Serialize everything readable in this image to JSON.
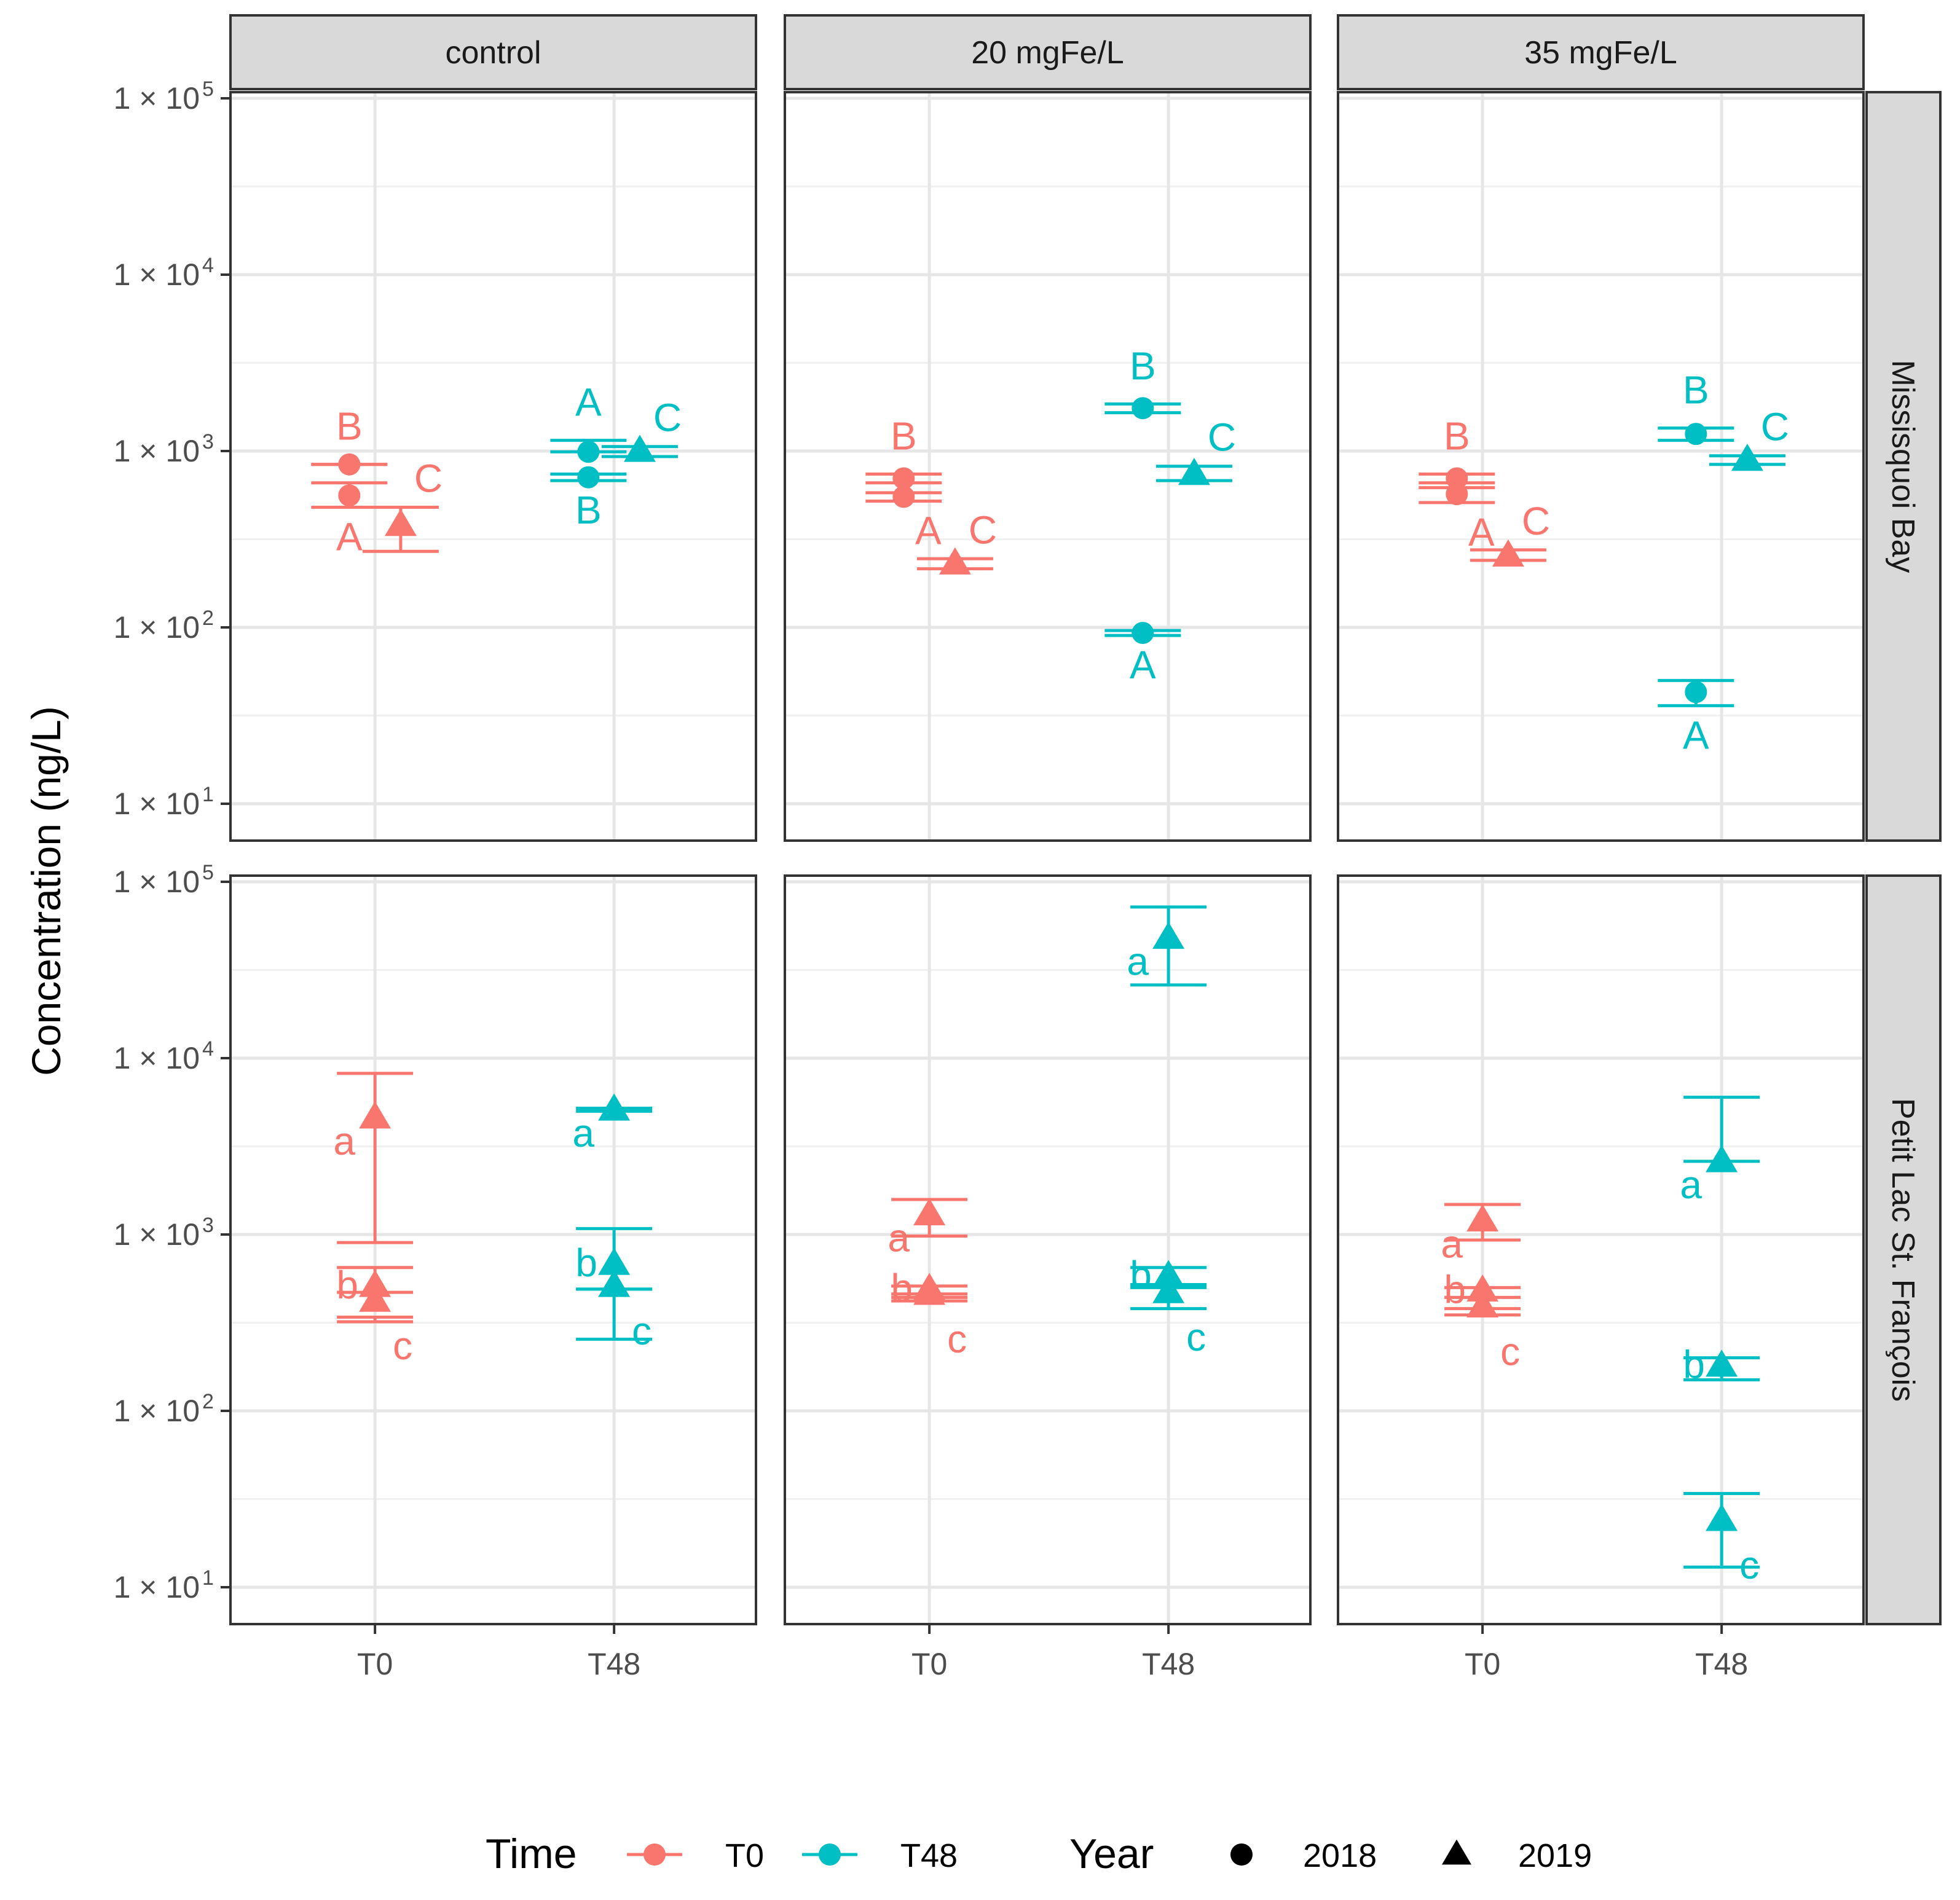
{
  "chart_data": {
    "type": "scatter",
    "title": "",
    "ylabel": "Concentration (ng/L)",
    "xlabel": "",
    "y_scale": "log10",
    "ylim": [
      10,
      100000
    ],
    "y_ticks": [
      {
        "value": 10,
        "label": "1 × 10",
        "exp": "1"
      },
      {
        "value": 100,
        "label": "1 × 10",
        "exp": "2"
      },
      {
        "value": 1000,
        "label": "1 × 10",
        "exp": "3"
      },
      {
        "value": 10000,
        "label": "1 × 10",
        "exp": "4"
      },
      {
        "value": 100000,
        "label": "1 × 10",
        "exp": "5"
      }
    ],
    "x_categories": [
      "T0",
      "T48"
    ],
    "columns": [
      "control",
      "20 mgFe/L",
      "35 mgFe/L"
    ],
    "rows": [
      "Missisquoi Bay",
      "Petit Lac St. François"
    ],
    "grid": true,
    "legend": {
      "placement": "bottom",
      "time_title": "Time",
      "time_items": [
        {
          "label": "T0",
          "color": "#F8766D"
        },
        {
          "label": "T48",
          "color": "#00BFC4"
        }
      ],
      "year_title": "Year",
      "year_items": [
        {
          "label": "2018",
          "shape": "circle"
        },
        {
          "label": "2019",
          "shape": "triangle"
        }
      ]
    },
    "points": [
      {
        "row": 0,
        "col": 0,
        "time": "T0",
        "year": 2018,
        "offset": -0.22,
        "y": 840,
        "err_low": 840,
        "err_high": 840,
        "letter": "B"
      },
      {
        "row": 0,
        "col": 0,
        "time": "T0",
        "year": 2018,
        "offset": -0.22,
        "y": 560,
        "err_low": 480,
        "err_high": 660,
        "letter": "A"
      },
      {
        "row": 0,
        "col": 0,
        "time": "T0",
        "year": 2019,
        "offset": 0.22,
        "y": 380,
        "err_low": 270,
        "err_high": 480,
        "letter": "C"
      },
      {
        "row": 0,
        "col": 0,
        "time": "T48",
        "year": 2018,
        "offset": -0.22,
        "y": 990,
        "err_low": 990,
        "err_high": 1150,
        "letter": "A"
      },
      {
        "row": 0,
        "col": 0,
        "time": "T48",
        "year": 2018,
        "offset": -0.22,
        "y": 710,
        "err_low": 680,
        "err_high": 740,
        "letter": "B"
      },
      {
        "row": 0,
        "col": 0,
        "time": "T48",
        "year": 2019,
        "offset": 0.22,
        "y": 1000,
        "err_low": 930,
        "err_high": 1060,
        "letter": "C"
      },
      {
        "row": 0,
        "col": 1,
        "time": "T0",
        "year": 2018,
        "offset": -0.22,
        "y": 700,
        "err_low": 660,
        "err_high": 740,
        "letter": "B"
      },
      {
        "row": 0,
        "col": 1,
        "time": "T0",
        "year": 2018,
        "offset": -0.22,
        "y": 550,
        "err_low": 520,
        "err_high": 580,
        "letter": "A"
      },
      {
        "row": 0,
        "col": 1,
        "time": "T0",
        "year": 2019,
        "offset": 0.22,
        "y": 230,
        "err_low": 215,
        "err_high": 245,
        "letter": "C"
      },
      {
        "row": 0,
        "col": 1,
        "time": "T48",
        "year": 2018,
        "offset": -0.22,
        "y": 1750,
        "err_low": 1650,
        "err_high": 1850,
        "letter": "B"
      },
      {
        "row": 0,
        "col": 1,
        "time": "T48",
        "year": 2018,
        "offset": -0.22,
        "y": 93,
        "err_low": 90,
        "err_high": 96,
        "letter": "A"
      },
      {
        "row": 0,
        "col": 1,
        "time": "T48",
        "year": 2019,
        "offset": 0.22,
        "y": 740,
        "err_low": 680,
        "err_high": 820,
        "letter": "C"
      },
      {
        "row": 0,
        "col": 2,
        "time": "T0",
        "year": 2018,
        "offset": -0.22,
        "y": 700,
        "err_low": 660,
        "err_high": 740,
        "letter": "B"
      },
      {
        "row": 0,
        "col": 2,
        "time": "T0",
        "year": 2018,
        "offset": -0.22,
        "y": 570,
        "err_low": 510,
        "err_high": 620,
        "letter": "A"
      },
      {
        "row": 0,
        "col": 2,
        "time": "T0",
        "year": 2019,
        "offset": 0.22,
        "y": 255,
        "err_low": 240,
        "err_high": 275,
        "letter": "C"
      },
      {
        "row": 0,
        "col": 2,
        "time": "T48",
        "year": 2018,
        "offset": -0.22,
        "y": 1250,
        "err_low": 1150,
        "err_high": 1350,
        "letter": "B"
      },
      {
        "row": 0,
        "col": 2,
        "time": "T48",
        "year": 2018,
        "offset": -0.22,
        "y": 43,
        "err_low": 36,
        "err_high": 50,
        "letter": "A"
      },
      {
        "row": 0,
        "col": 2,
        "time": "T48",
        "year": 2019,
        "offset": 0.22,
        "y": 890,
        "err_low": 840,
        "err_high": 940,
        "letter": "C"
      },
      {
        "row": 1,
        "col": 0,
        "time": "T0",
        "year": 2019,
        "offset": 0,
        "y": 4600,
        "err_low": 900,
        "err_high": 8200,
        "letter": "a"
      },
      {
        "row": 1,
        "col": 0,
        "time": "T0",
        "year": 2019,
        "offset": 0,
        "y": 510,
        "err_low": 470,
        "err_high": 650,
        "letter": "b"
      },
      {
        "row": 1,
        "col": 0,
        "time": "T0",
        "year": 2019,
        "offset": 0,
        "y": 420,
        "err_low": 320,
        "err_high": 340,
        "letter": "c"
      },
      {
        "row": 1,
        "col": 0,
        "time": "T48",
        "year": 2019,
        "offset": 0,
        "y": 5100,
        "err_low": 5000,
        "err_high": 5200,
        "letter": "a"
      },
      {
        "row": 1,
        "col": 0,
        "time": "T48",
        "year": 2019,
        "offset": 0,
        "y": 680,
        "err_low": 490,
        "err_high": 1080,
        "letter": "b"
      },
      {
        "row": 1,
        "col": 0,
        "time": "T48",
        "year": 2019,
        "offset": 0,
        "y": 510,
        "err_low": 255,
        "err_high": 490,
        "letter": "c"
      },
      {
        "row": 1,
        "col": 1,
        "time": "T0",
        "year": 2019,
        "offset": 0,
        "y": 1300,
        "err_low": 980,
        "err_high": 1580,
        "letter": "a"
      },
      {
        "row": 1,
        "col": 1,
        "time": "T0",
        "year": 2019,
        "offset": 0,
        "y": 490,
        "err_low": 460,
        "err_high": 510,
        "letter": "b"
      },
      {
        "row": 1,
        "col": 1,
        "time": "T0",
        "year": 2019,
        "offset": 0,
        "y": 460,
        "err_low": 420,
        "err_high": 440,
        "letter": "c"
      },
      {
        "row": 1,
        "col": 1,
        "time": "T48",
        "year": 2019,
        "offset": 0,
        "y": 48000,
        "err_low": 26000,
        "err_high": 72000,
        "letter": "a"
      },
      {
        "row": 1,
        "col": 1,
        "time": "T48",
        "year": 2019,
        "offset": 0,
        "y": 580,
        "err_low": 520,
        "err_high": 650,
        "letter": "b"
      },
      {
        "row": 1,
        "col": 1,
        "time": "T48",
        "year": 2019,
        "offset": 0,
        "y": 470,
        "err_low": 380,
        "err_high": 500,
        "letter": "c"
      },
      {
        "row": 1,
        "col": 2,
        "time": "T0",
        "year": 2019,
        "offset": 0,
        "y": 1200,
        "err_low": 930,
        "err_high": 1480,
        "letter": "a"
      },
      {
        "row": 1,
        "col": 2,
        "time": "T0",
        "year": 2019,
        "offset": 0,
        "y": 480,
        "err_low": 440,
        "err_high": 500,
        "letter": "b"
      },
      {
        "row": 1,
        "col": 2,
        "time": "T0",
        "year": 2019,
        "offset": 0,
        "y": 390,
        "err_low": 350,
        "err_high": 380,
        "letter": "c"
      },
      {
        "row": 1,
        "col": 2,
        "time": "T48",
        "year": 2019,
        "offset": 0,
        "y": 2600,
        "err_low": 2600,
        "err_high": 6000,
        "letter": "a"
      },
      {
        "row": 1,
        "col": 2,
        "time": "T48",
        "year": 2019,
        "offset": 0,
        "y": 180,
        "err_low": 150,
        "err_high": 200,
        "letter": "b"
      },
      {
        "row": 1,
        "col": 2,
        "time": "T48",
        "year": 2019,
        "offset": 0,
        "y": 24,
        "err_low": 13,
        "err_high": 34,
        "letter": "c"
      }
    ]
  }
}
